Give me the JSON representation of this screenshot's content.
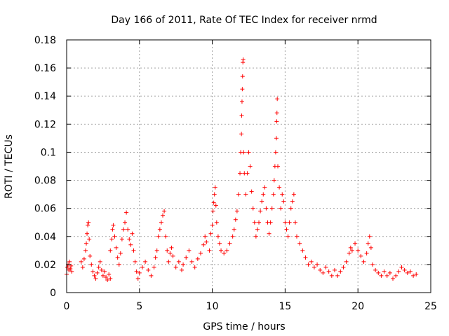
{
  "chart_data": {
    "type": "scatter",
    "title": "Day 166 of 2011, Rate Of TEC Index for receiver nrmd",
    "xlabel": "GPS time / hours",
    "ylabel": "ROTI / TECUs",
    "xlim": [
      0,
      25
    ],
    "ylim": [
      0,
      0.18
    ],
    "xticks": [
      0,
      5,
      10,
      15,
      20,
      25
    ],
    "xtick_labels": [
      "0",
      "5",
      "10",
      "15",
      "20",
      "25"
    ],
    "yticks": [
      0,
      0.02,
      0.04,
      0.06,
      0.08,
      0.1,
      0.12,
      0.14,
      0.16,
      0.18
    ],
    "ytick_labels": [
      "0",
      "0.02",
      "0.04",
      "0.06",
      "0.08",
      "0.1",
      "0.12",
      "0.14",
      "0.16",
      "0.18"
    ],
    "grid": true,
    "marker": "+",
    "series": [
      {
        "name": "ROTI",
        "color": "#ff0000",
        "points": [
          [
            0.0,
            0.013
          ],
          [
            0.05,
            0.018
          ],
          [
            0.1,
            0.02
          ],
          [
            0.15,
            0.016
          ],
          [
            0.2,
            0.022
          ],
          [
            0.25,
            0.017
          ],
          [
            0.3,
            0.019
          ],
          [
            0.35,
            0.015
          ],
          [
            1.0,
            0.022
          ],
          [
            1.1,
            0.018
          ],
          [
            1.2,
            0.024
          ],
          [
            1.3,
            0.03
          ],
          [
            1.35,
            0.035
          ],
          [
            1.4,
            0.042
          ],
          [
            1.45,
            0.048
          ],
          [
            1.5,
            0.05
          ],
          [
            1.55,
            0.038
          ],
          [
            1.6,
            0.026
          ],
          [
            1.7,
            0.02
          ],
          [
            1.8,
            0.015
          ],
          [
            1.9,
            0.012
          ],
          [
            2.0,
            0.01
          ],
          [
            2.1,
            0.014
          ],
          [
            2.2,
            0.018
          ],
          [
            2.3,
            0.022
          ],
          [
            2.4,
            0.016
          ],
          [
            2.5,
            0.012
          ],
          [
            2.6,
            0.015
          ],
          [
            2.7,
            0.011
          ],
          [
            2.8,
            0.009
          ],
          [
            2.9,
            0.013
          ],
          [
            3.0,
            0.01
          ],
          [
            3.0,
            0.03
          ],
          [
            3.1,
            0.038
          ],
          [
            3.15,
            0.045
          ],
          [
            3.2,
            0.048
          ],
          [
            3.3,
            0.04
          ],
          [
            3.4,
            0.032
          ],
          [
            3.5,
            0.025
          ],
          [
            3.6,
            0.02
          ],
          [
            3.7,
            0.028
          ],
          [
            3.8,
            0.038
          ],
          [
            3.9,
            0.045
          ],
          [
            4.0,
            0.05
          ],
          [
            4.1,
            0.057
          ],
          [
            4.2,
            0.045
          ],
          [
            4.3,
            0.038
          ],
          [
            4.4,
            0.034
          ],
          [
            4.5,
            0.042
          ],
          [
            4.6,
            0.03
          ],
          [
            4.7,
            0.022
          ],
          [
            4.8,
            0.015
          ],
          [
            4.9,
            0.01
          ],
          [
            5.0,
            0.014
          ],
          [
            5.2,
            0.018
          ],
          [
            5.4,
            0.022
          ],
          [
            5.6,
            0.016
          ],
          [
            5.8,
            0.012
          ],
          [
            6.0,
            0.018
          ],
          [
            6.1,
            0.025
          ],
          [
            6.2,
            0.03
          ],
          [
            6.3,
            0.04
          ],
          [
            6.4,
            0.045
          ],
          [
            6.5,
            0.05
          ],
          [
            6.6,
            0.055
          ],
          [
            6.7,
            0.058
          ],
          [
            6.8,
            0.04
          ],
          [
            6.9,
            0.03
          ],
          [
            7.0,
            0.022
          ],
          [
            7.1,
            0.028
          ],
          [
            7.2,
            0.032
          ],
          [
            7.3,
            0.026
          ],
          [
            7.5,
            0.018
          ],
          [
            7.7,
            0.022
          ],
          [
            7.9,
            0.016
          ],
          [
            8.0,
            0.02
          ],
          [
            8.2,
            0.025
          ],
          [
            8.4,
            0.03
          ],
          [
            8.6,
            0.022
          ],
          [
            8.8,
            0.018
          ],
          [
            9.0,
            0.024
          ],
          [
            9.2,
            0.028
          ],
          [
            9.4,
            0.034
          ],
          [
            9.5,
            0.04
          ],
          [
            9.6,
            0.036
          ],
          [
            9.8,
            0.03
          ],
          [
            9.9,
            0.042
          ],
          [
            10.0,
            0.048
          ],
          [
            10.05,
            0.058
          ],
          [
            10.1,
            0.064
          ],
          [
            10.15,
            0.07
          ],
          [
            10.2,
            0.075
          ],
          [
            10.25,
            0.062
          ],
          [
            10.3,
            0.05
          ],
          [
            10.4,
            0.04
          ],
          [
            10.5,
            0.035
          ],
          [
            10.6,
            0.03
          ],
          [
            10.8,
            0.028
          ],
          [
            11.0,
            0.03
          ],
          [
            11.2,
            0.035
          ],
          [
            11.4,
            0.04
          ],
          [
            11.5,
            0.045
          ],
          [
            11.6,
            0.052
          ],
          [
            11.7,
            0.058
          ],
          [
            11.8,
            0.07
          ],
          [
            11.9,
            0.085
          ],
          [
            11.95,
            0.1
          ],
          [
            12.0,
            0.113
          ],
          [
            12.02,
            0.126
          ],
          [
            12.04,
            0.136
          ],
          [
            12.06,
            0.145
          ],
          [
            12.08,
            0.154
          ],
          [
            12.1,
            0.164
          ],
          [
            12.12,
            0.166
          ],
          [
            12.15,
            0.1
          ],
          [
            12.2,
            0.085
          ],
          [
            12.3,
            0.07
          ],
          [
            12.4,
            0.085
          ],
          [
            12.5,
            0.1
          ],
          [
            12.6,
            0.09
          ],
          [
            12.7,
            0.072
          ],
          [
            12.8,
            0.06
          ],
          [
            12.9,
            0.05
          ],
          [
            13.0,
            0.04
          ],
          [
            13.1,
            0.045
          ],
          [
            13.2,
            0.05
          ],
          [
            13.3,
            0.058
          ],
          [
            13.4,
            0.065
          ],
          [
            13.5,
            0.07
          ],
          [
            13.6,
            0.075
          ],
          [
            13.7,
            0.06
          ],
          [
            13.8,
            0.05
          ],
          [
            13.9,
            0.042
          ],
          [
            14.0,
            0.05
          ],
          [
            14.1,
            0.06
          ],
          [
            14.2,
            0.07
          ],
          [
            14.25,
            0.08
          ],
          [
            14.3,
            0.09
          ],
          [
            14.35,
            0.1
          ],
          [
            14.4,
            0.11
          ],
          [
            14.42,
            0.122
          ],
          [
            14.44,
            0.128
          ],
          [
            14.46,
            0.138
          ],
          [
            14.5,
            0.09
          ],
          [
            14.6,
            0.075
          ],
          [
            14.7,
            0.06
          ],
          [
            14.8,
            0.07
          ],
          [
            14.9,
            0.065
          ],
          [
            15.0,
            0.05
          ],
          [
            15.1,
            0.045
          ],
          [
            15.2,
            0.04
          ],
          [
            15.3,
            0.05
          ],
          [
            15.4,
            0.06
          ],
          [
            15.5,
            0.065
          ],
          [
            15.6,
            0.07
          ],
          [
            15.7,
            0.05
          ],
          [
            15.8,
            0.04
          ],
          [
            16.0,
            0.035
          ],
          [
            16.2,
            0.03
          ],
          [
            16.4,
            0.025
          ],
          [
            16.6,
            0.02
          ],
          [
            16.8,
            0.022
          ],
          [
            17.0,
            0.018
          ],
          [
            17.2,
            0.02
          ],
          [
            17.4,
            0.016
          ],
          [
            17.6,
            0.014
          ],
          [
            17.8,
            0.018
          ],
          [
            18.0,
            0.015
          ],
          [
            18.2,
            0.012
          ],
          [
            18.4,
            0.016
          ],
          [
            18.6,
            0.012
          ],
          [
            18.8,
            0.015
          ],
          [
            19.0,
            0.018
          ],
          [
            19.2,
            0.022
          ],
          [
            19.4,
            0.028
          ],
          [
            19.5,
            0.032
          ],
          [
            19.6,
            0.03
          ],
          [
            19.8,
            0.035
          ],
          [
            20.0,
            0.03
          ],
          [
            20.2,
            0.026
          ],
          [
            20.4,
            0.022
          ],
          [
            20.6,
            0.028
          ],
          [
            20.7,
            0.035
          ],
          [
            20.8,
            0.04
          ],
          [
            20.9,
            0.032
          ],
          [
            21.0,
            0.02
          ],
          [
            21.2,
            0.016
          ],
          [
            21.4,
            0.014
          ],
          [
            21.6,
            0.012
          ],
          [
            21.8,
            0.015
          ],
          [
            22.0,
            0.012
          ],
          [
            22.2,
            0.014
          ],
          [
            22.4,
            0.01
          ],
          [
            22.6,
            0.012
          ],
          [
            22.8,
            0.015
          ],
          [
            23.0,
            0.018
          ],
          [
            23.2,
            0.016
          ],
          [
            23.4,
            0.014
          ],
          [
            23.6,
            0.015
          ],
          [
            23.8,
            0.012
          ],
          [
            24.0,
            0.013
          ]
        ]
      }
    ]
  }
}
